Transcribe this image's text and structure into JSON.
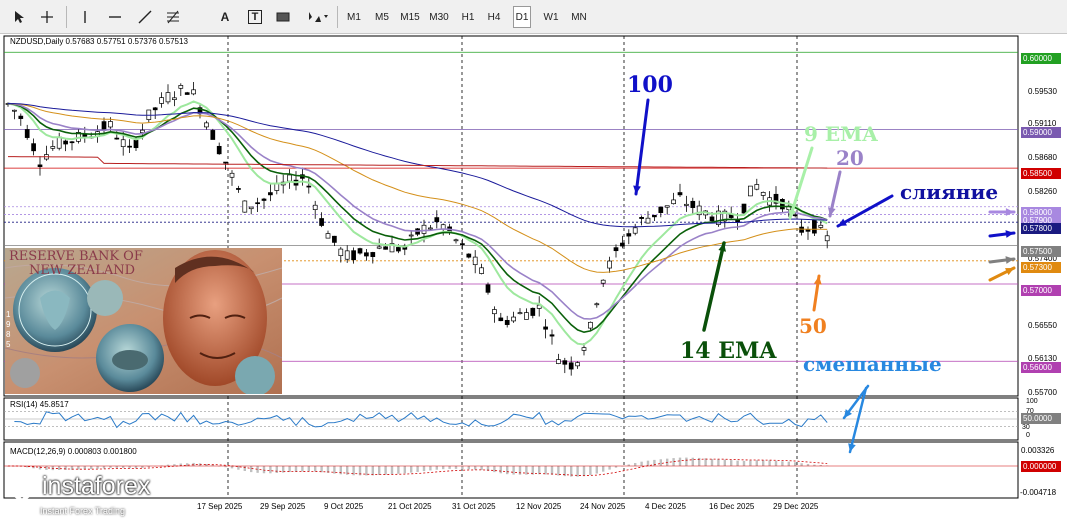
{
  "toolbar": {
    "draw_tools": [
      "cursor-icon",
      "crosshair-icon",
      "vertical-line-icon",
      "horizontal-line-icon",
      "trendline-icon",
      "fibonacci-icon",
      "text-icon",
      "label-icon",
      "rectangle-icon",
      "arrows-icon"
    ],
    "text_tool_label": "A",
    "label_tool_label": "T",
    "timeframes": [
      "M1",
      "M5",
      "M15",
      "M30",
      "H1",
      "H4",
      "D1",
      "W1",
      "MN"
    ],
    "active_timeframe": "D1"
  },
  "chart": {
    "header": "NZDUSD,Daily  0.57683 0.57751 0.57376 0.57513",
    "price_labels": [
      "0.59530",
      "0.59110",
      "0.58680",
      "0.58260",
      "0.57400",
      "0.56550",
      "0.56130",
      "0.55700"
    ],
    "level_badges": [
      {
        "text": "0.60000",
        "color": "#22a022"
      },
      {
        "text": "0.59000",
        "color": "#7a5ab0"
      },
      {
        "text": "0.58500",
        "color": "#d00000"
      },
      {
        "text": "0.58000",
        "color": "#a888e0"
      },
      {
        "text": "0.57900",
        "color": "#a888e0"
      },
      {
        "text": "0.57800",
        "color": "#1a1a80"
      },
      {
        "text": "0.57500",
        "color": "#808080"
      },
      {
        "text": "0.57300",
        "color": "#e08a10"
      },
      {
        "text": "0.57000",
        "color": "#b040b0"
      },
      {
        "text": "0.56000",
        "color": "#b040b0"
      }
    ],
    "dates": [
      "17 Sep 2025",
      "29 Sep 2025",
      "9 Oct 2025",
      "21 Oct 2025",
      "31 Oct 2025",
      "12 Nov 2025",
      "24 Nov 2025",
      "4 Dec 2025",
      "16 Dec 2025",
      "29 Dec 2025"
    ],
    "banknote_lines": [
      "RESERVE BANK OF",
      "NEW ZEALAND"
    ],
    "banknote_digits": [
      "1",
      "9",
      "8",
      "5"
    ]
  },
  "annotations": {
    "label_100": "100",
    "label_9ema": "9 EMA",
    "label_20": "20",
    "label_merge": "слияние",
    "label_14ema": "14 EMA",
    "label_50": "50",
    "label_mixed": "смешанные"
  },
  "rsi": {
    "label": "RSI(14) 45.8517",
    "scale": [
      "100",
      "70",
      "30",
      "0"
    ],
    "badge": "50.0000"
  },
  "macd": {
    "label": "MACD(12,26,9) 0.000803 0.001800",
    "scale": [
      "0.003326",
      "-0.004718"
    ],
    "badge": "0.000000"
  },
  "logo": {
    "name": "instaforex",
    "tagline": "Instant Forex Trading"
  },
  "colors": {
    "ma100": "#1a1a9a",
    "ema9": "#9ee89e",
    "ma20": "#9a82c8",
    "ema14": "#0a600a",
    "ma50": "#d4901a",
    "ma200": "#b82020",
    "arrow_blue": "#1010c8",
    "arrow_green": "#0a500a",
    "arrow_orange": "#f08020",
    "arrow_mixed": "#2888e0"
  }
}
